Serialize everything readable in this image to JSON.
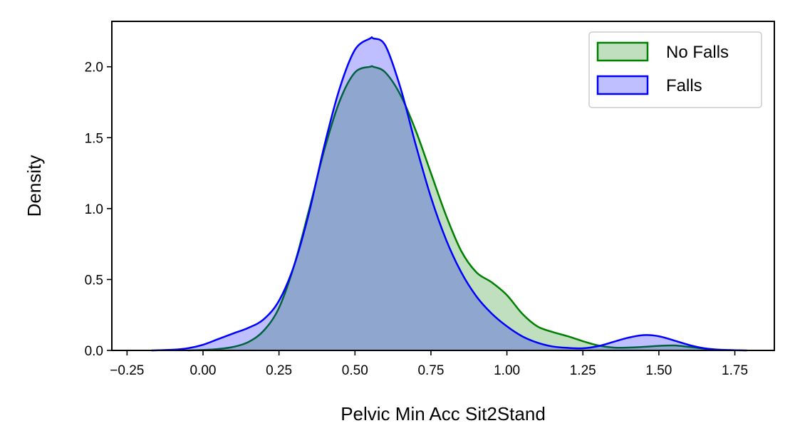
{
  "chart_data": {
    "type": "area",
    "xlabel": "Pelvic Min Acc Sit2Stand",
    "ylabel": "Density",
    "xlim": [
      -0.3,
      1.88
    ],
    "ylim": [
      0,
      2.32
    ],
    "xticks": [
      -0.25,
      0.0,
      0.25,
      0.5,
      0.75,
      1.0,
      1.25,
      1.5,
      1.75
    ],
    "xtick_labels": [
      "−0.25",
      "0.00",
      "0.25",
      "0.50",
      "0.75",
      "1.00",
      "1.25",
      "1.50",
      "1.75"
    ],
    "yticks": [
      0.0,
      0.5,
      1.0,
      1.5,
      2.0
    ],
    "ytick_labels": [
      "0.0",
      "0.5",
      "1.0",
      "1.5",
      "2.0"
    ],
    "grid": false,
    "legend_position": "top-right",
    "series": [
      {
        "name": "No Falls",
        "color": "#008000",
        "fill": "rgba(0,128,0,0.25)",
        "x": [
          -0.05,
          0.0,
          0.05,
          0.1,
          0.15,
          0.2,
          0.25,
          0.3,
          0.35,
          0.4,
          0.45,
          0.5,
          0.55,
          0.56,
          0.6,
          0.65,
          0.7,
          0.75,
          0.8,
          0.85,
          0.9,
          0.95,
          1.0,
          1.05,
          1.1,
          1.15,
          1.2,
          1.25,
          1.3,
          1.35,
          1.4,
          1.45,
          1.5,
          1.55,
          1.6,
          1.65,
          1.7
        ],
        "y": [
          0.0,
          0.003,
          0.01,
          0.025,
          0.06,
          0.14,
          0.3,
          0.6,
          1.0,
          1.42,
          1.76,
          1.96,
          2.0,
          2.0,
          1.96,
          1.8,
          1.55,
          1.25,
          0.95,
          0.7,
          0.55,
          0.48,
          0.39,
          0.26,
          0.17,
          0.13,
          0.1,
          0.065,
          0.035,
          0.02,
          0.02,
          0.025,
          0.032,
          0.035,
          0.025,
          0.012,
          0.003
        ]
      },
      {
        "name": "Falls",
        "color": "#0000ff",
        "fill": "rgba(0,0,255,0.25)",
        "x": [
          -0.17,
          -0.1,
          -0.05,
          0.0,
          0.05,
          0.1,
          0.15,
          0.2,
          0.25,
          0.3,
          0.35,
          0.4,
          0.45,
          0.5,
          0.55,
          0.56,
          0.6,
          0.65,
          0.7,
          0.75,
          0.8,
          0.85,
          0.9,
          0.95,
          1.0,
          1.05,
          1.1,
          1.15,
          1.2,
          1.25,
          1.3,
          1.35,
          1.4,
          1.45,
          1.5,
          1.55,
          1.6,
          1.65,
          1.7,
          1.79
        ],
        "y": [
          0.0,
          0.005,
          0.015,
          0.04,
          0.08,
          0.12,
          0.16,
          0.22,
          0.35,
          0.6,
          0.98,
          1.45,
          1.85,
          2.12,
          2.2,
          2.2,
          2.15,
          1.85,
          1.45,
          1.08,
          0.78,
          0.55,
          0.38,
          0.26,
          0.17,
          0.1,
          0.055,
          0.028,
          0.018,
          0.015,
          0.03,
          0.06,
          0.09,
          0.108,
          0.1,
          0.07,
          0.038,
          0.015,
          0.005,
          0.0
        ]
      }
    ]
  }
}
